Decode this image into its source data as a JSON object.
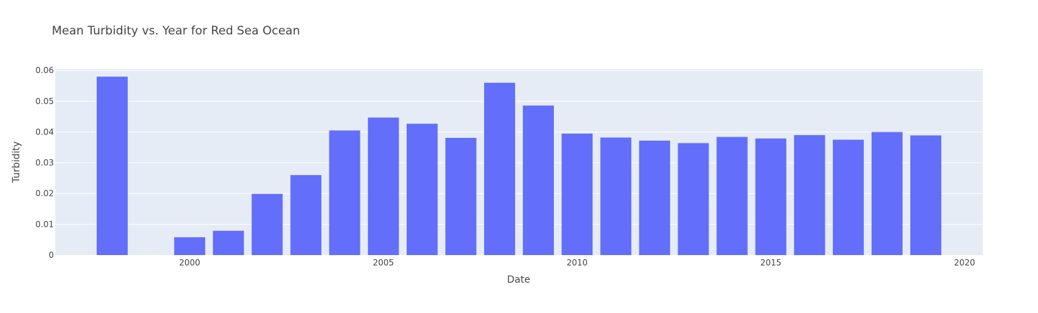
{
  "chart_data": {
    "type": "bar",
    "title": "Mean Turbidity vs. Year for Red Sea Ocean",
    "xlabel": "Date",
    "ylabel": "Turbidity",
    "x": [
      1998,
      1999,
      2000,
      2001,
      2002,
      2003,
      2004,
      2005,
      2006,
      2007,
      2008,
      2009,
      2010,
      2011,
      2012,
      2013,
      2014,
      2015,
      2016,
      2017,
      2018,
      2019
    ],
    "values": [
      0.058,
      0.0,
      0.0058,
      0.0079,
      0.0199,
      0.026,
      0.0405,
      0.0447,
      0.0427,
      0.0381,
      0.056,
      0.0486,
      0.0395,
      0.0382,
      0.0372,
      0.0364,
      0.0384,
      0.0379,
      0.039,
      0.0375,
      0.04,
      0.0389
    ],
    "xlim": [
      1996.53,
      2020.47
    ],
    "ylim": [
      0,
      0.0605
    ],
    "x_ticks": [
      2000,
      2005,
      2010,
      2015,
      2020
    ],
    "x_tick_labels": [
      "2000",
      "2005",
      "2010",
      "2015",
      "2020"
    ],
    "y_ticks": [
      0,
      0.01,
      0.02,
      0.03,
      0.04,
      0.05,
      0.06
    ],
    "y_tick_labels": [
      "0",
      "0.01",
      "0.02",
      "0.03",
      "0.04",
      "0.05",
      "0.06"
    ],
    "grid": true,
    "colors": {
      "bar": "#636efa",
      "plot_bg": "#e5ecf6",
      "grid": "#ffffff",
      "text": "#444444"
    }
  }
}
